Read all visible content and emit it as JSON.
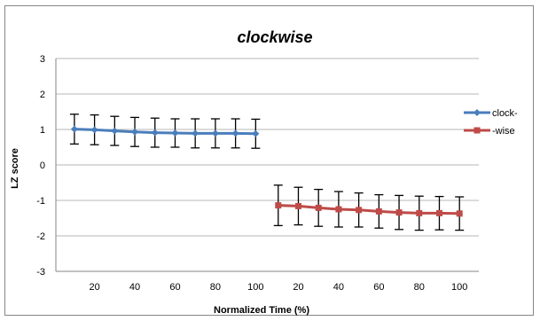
{
  "chart_data": {
    "type": "line",
    "title": "clockwise",
    "xlabel": "Normalized Time (%)",
    "ylabel": "LZ score",
    "ylim": [
      -3,
      3
    ],
    "yticks": [
      -3,
      -2,
      -1,
      0,
      1,
      2,
      3
    ],
    "grid": true,
    "legend_position": "right",
    "series": [
      {
        "name": "clock-",
        "color": "#4a7ebb",
        "marker": "diamond",
        "x": [
          10,
          20,
          30,
          40,
          50,
          60,
          70,
          80,
          90,
          100
        ],
        "values": [
          1.01,
          0.99,
          0.96,
          0.93,
          0.91,
          0.9,
          0.89,
          0.89,
          0.89,
          0.88
        ],
        "error": [
          0.42,
          0.42,
          0.41,
          0.41,
          0.41,
          0.4,
          0.41,
          0.41,
          0.41,
          0.41
        ]
      },
      {
        "name": "-wise",
        "color": "#be4b48",
        "marker": "square",
        "x": [
          10,
          20,
          30,
          40,
          50,
          60,
          70,
          80,
          90,
          100
        ],
        "values": [
          -1.14,
          -1.16,
          -1.21,
          -1.25,
          -1.27,
          -1.31,
          -1.34,
          -1.36,
          -1.36,
          -1.37
        ],
        "error": [
          0.57,
          0.53,
          0.52,
          0.5,
          0.48,
          0.47,
          0.48,
          0.48,
          0.47,
          0.47
        ]
      }
    ],
    "xtick_labels": [
      "20",
      "40",
      "60",
      "80",
      "100"
    ]
  }
}
